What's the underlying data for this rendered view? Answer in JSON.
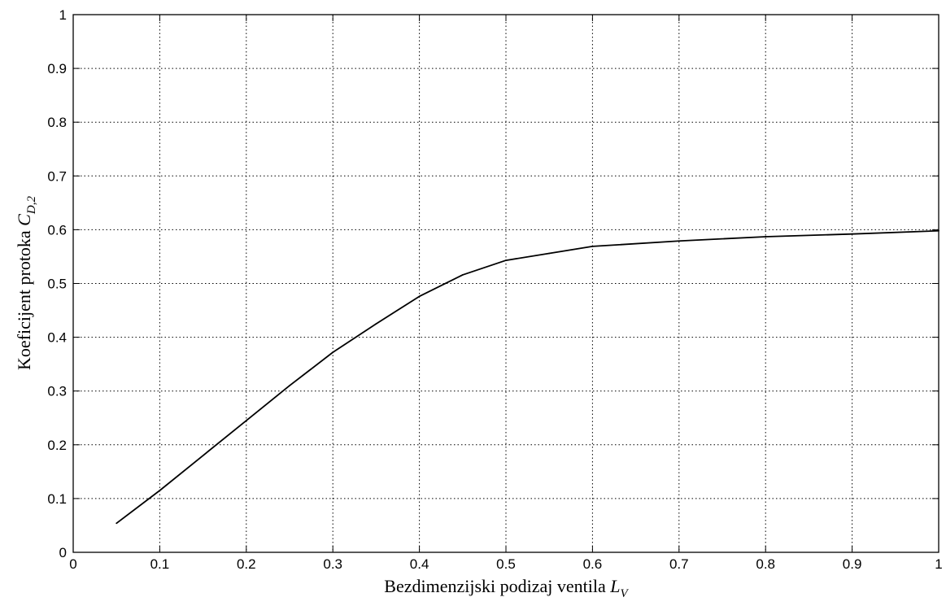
{
  "chart_data": {
    "type": "line",
    "xlabel": {
      "text": "Bezdimenzijski podizaj ventila ",
      "symbol": "L",
      "subscript": "V"
    },
    "ylabel": {
      "text": "Koeficijent protoka ",
      "symbol": "C",
      "subscript": "D,2"
    },
    "xlim": [
      0,
      1
    ],
    "ylim": [
      0,
      1
    ],
    "xticks": [
      "0",
      "0.1",
      "0.2",
      "0.3",
      "0.4",
      "0.5",
      "0.6",
      "0.7",
      "0.8",
      "0.9",
      "1"
    ],
    "yticks": [
      "0",
      "0.1",
      "0.2",
      "0.3",
      "0.4",
      "0.5",
      "0.6",
      "0.7",
      "0.8",
      "0.9",
      "1"
    ],
    "grid": true,
    "line_color": "#000000",
    "series": [
      {
        "x": [
          0.05,
          0.1,
          0.15,
          0.2,
          0.25,
          0.3,
          0.35,
          0.4,
          0.45,
          0.5,
          0.55,
          0.6,
          0.7,
          0.8,
          0.9,
          1.0
        ],
        "y": [
          0.054,
          0.115,
          0.18,
          0.245,
          0.31,
          0.372,
          0.425,
          0.476,
          0.516,
          0.543,
          0.556,
          0.569,
          0.579,
          0.587,
          0.592,
          0.598
        ]
      }
    ]
  }
}
